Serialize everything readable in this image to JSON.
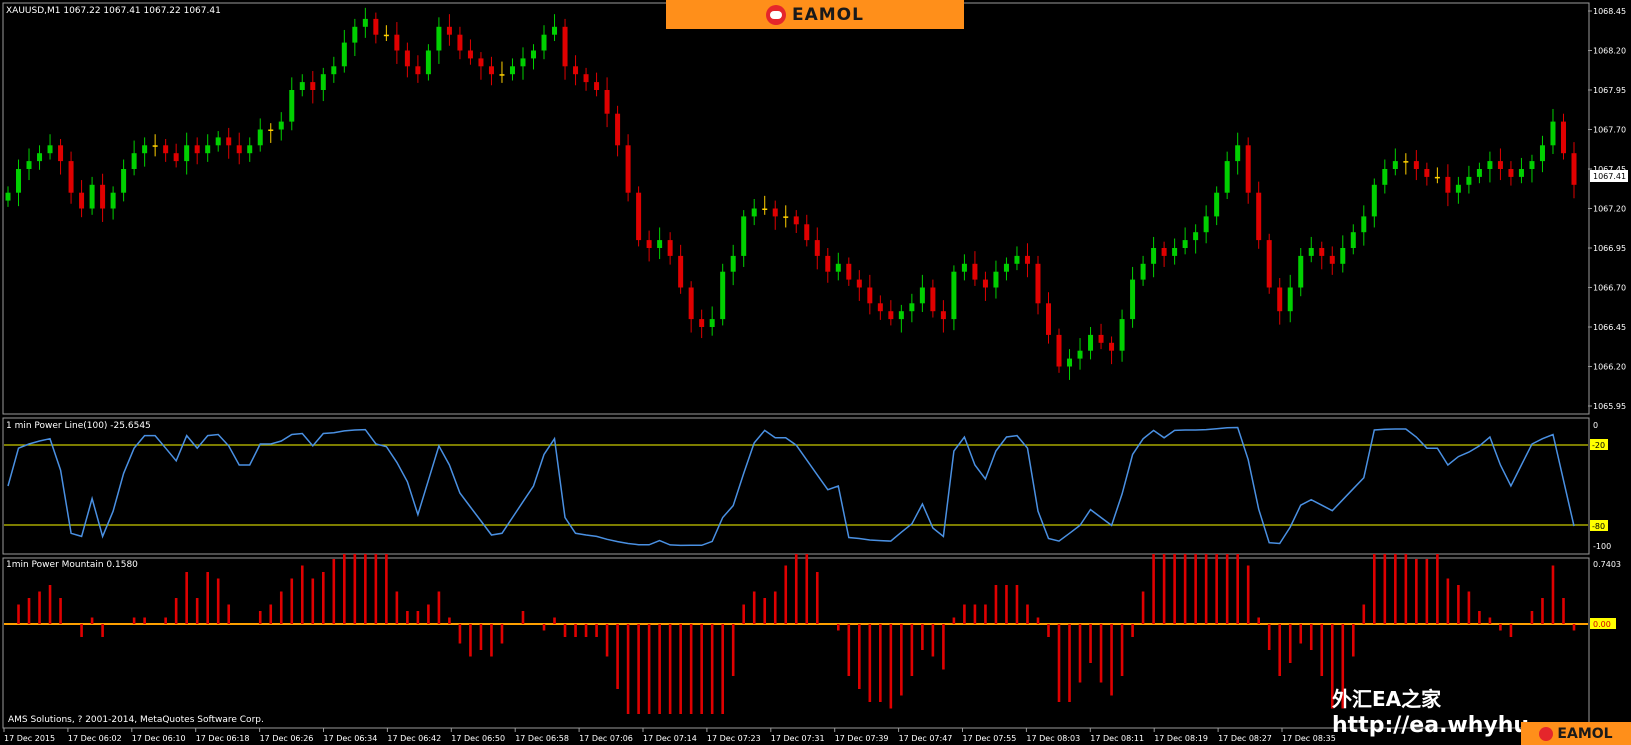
{
  "window": {
    "symbol_header": "XAUUSD,M1  1067.22 1067.41 1067.22 1067.41",
    "current_price_label": "1067.41"
  },
  "banner": {
    "brand": "EAMOL"
  },
  "price_panel": {
    "y_axis_labels": [
      "1068.45",
      "1068.20",
      "1067.95",
      "1067.70",
      "1067.45",
      "1067.20",
      "1066.95",
      "1066.70",
      "1066.45",
      "1066.20",
      "1065.95"
    ],
    "y_axis_values": [
      1068.45,
      1068.2,
      1067.95,
      1067.7,
      1067.45,
      1067.2,
      1066.95,
      1066.7,
      1066.45,
      1066.2,
      1065.95
    ]
  },
  "power_line_panel": {
    "title": "1 min Power Line(100) -25.6545",
    "axis_labels": [
      "0",
      "-20",
      "-80",
      "-100"
    ],
    "levels": {
      "upper": -20,
      "lower": -80
    }
  },
  "power_mountain_panel": {
    "title": "1min Power Mountain 0.1580",
    "axis_labels": [
      "0.7403",
      "0.00"
    ]
  },
  "footer": {
    "copyright": "AMS Solutions, ? 2001-2014, MetaQuotes Software Corp.",
    "time_labels": [
      "17 Dec 2015",
      "17 Dec 06:02",
      "17 Dec 06:10",
      "17 Dec 06:18",
      "17 Dec 06:26",
      "17 Dec 06:34",
      "17 Dec 06:42",
      "17 Dec 06:50",
      "17 Dec 06:58",
      "17 Dec 07:06",
      "17 Dec 07:14",
      "17 Dec 07:23",
      "17 Dec 07:31",
      "17 Dec 07:39",
      "17 Dec 07:47",
      "17 Dec 07:55",
      "17 Dec 08:03",
      "17 Dec 08:11",
      "17 Dec 08:19",
      "17 Dec 08:27",
      "17 Dec 08:35"
    ]
  },
  "watermark": {
    "line1": "外汇EA之家",
    "line2": "http://ea.whyhu",
    "brand": "EAMOL"
  },
  "colors": {
    "bull": "#00d000",
    "bear": "#e00000",
    "doji": "#ffd000",
    "power_line": "#4a90e2",
    "level": "#c8c800",
    "mountain": "#e00000",
    "zero": "#ffa000"
  },
  "chart_data": {
    "type": "candlestick",
    "price_close_series": [
      1067.3,
      1067.45,
      1067.5,
      1067.55,
      1067.6,
      1067.5,
      1067.3,
      1067.2,
      1067.35,
      1067.2,
      1067.3,
      1067.45,
      1067.55,
      1067.6,
      1067.6,
      1067.55,
      1067.5,
      1067.6,
      1067.55,
      1067.6,
      1067.65,
      1067.6,
      1067.55,
      1067.6,
      1067.7,
      1067.7,
      1067.75,
      1067.95,
      1068.0,
      1067.95,
      1068.05,
      1068.1,
      1068.25,
      1068.35,
      1068.4,
      1068.3,
      1068.3,
      1068.2,
      1068.1,
      1068.05,
      1068.2,
      1068.35,
      1068.3,
      1068.2,
      1068.15,
      1068.1,
      1068.05,
      1068.05,
      1068.1,
      1068.15,
      1068.2,
      1068.3,
      1068.35,
      1068.1,
      1068.05,
      1068.0,
      1067.95,
      1067.8,
      1067.6,
      1067.3,
      1067.0,
      1066.95,
      1067.0,
      1066.9,
      1066.7,
      1066.5,
      1066.45,
      1066.5,
      1066.8,
      1066.9,
      1067.15,
      1067.2,
      1067.2,
      1067.15,
      1067.15,
      1067.1,
      1067.0,
      1066.9,
      1066.8,
      1066.85,
      1066.75,
      1066.7,
      1066.6,
      1066.55,
      1066.5,
      1066.55,
      1066.6,
      1066.7,
      1066.55,
      1066.5,
      1066.8,
      1066.85,
      1066.75,
      1066.7,
      1066.8,
      1066.85,
      1066.9,
      1066.85,
      1066.6,
      1066.4,
      1066.2,
      1066.25,
      1066.3,
      1066.4,
      1066.35,
      1066.3,
      1066.5,
      1066.75,
      1066.85,
      1066.95,
      1066.9,
      1066.95,
      1067.0,
      1067.05,
      1067.15,
      1067.3,
      1067.5,
      1067.6,
      1067.3,
      1067.0,
      1066.7,
      1066.55,
      1066.7,
      1066.9,
      1066.95,
      1066.9,
      1066.85,
      1066.95,
      1067.05,
      1067.15,
      1067.35,
      1067.45,
      1067.5,
      1067.5,
      1067.45,
      1067.4,
      1067.4,
      1067.3,
      1067.35,
      1067.4,
      1067.45,
      1067.5,
      1067.45,
      1067.4,
      1067.45,
      1067.5,
      1067.6,
      1067.75,
      1067.55,
      1067.35
    ]
  }
}
